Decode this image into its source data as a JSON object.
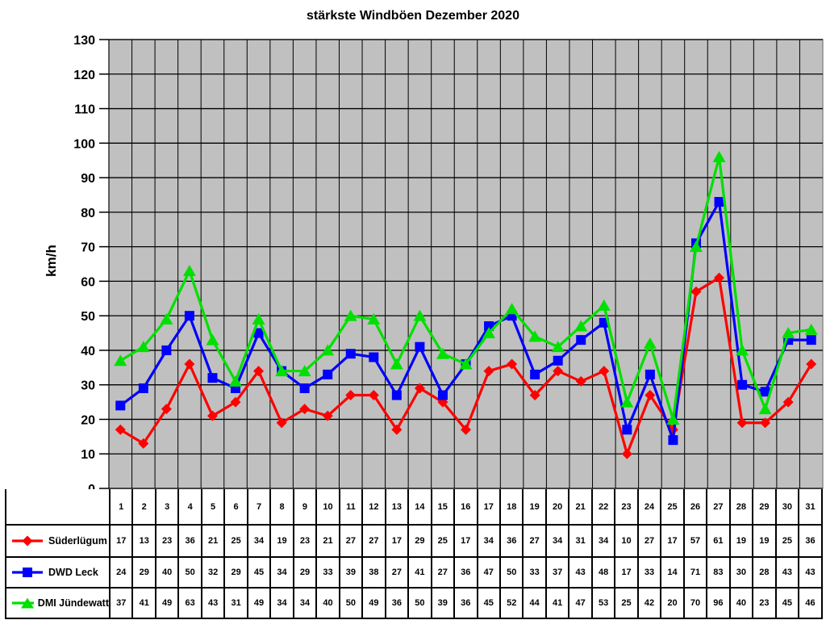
{
  "chart_data": {
    "type": "line",
    "title": "stärkste Windböen Dezember 2020",
    "xlabel": "",
    "ylabel": "km/h",
    "ylim": [
      0,
      130
    ],
    "ytick_step": 10,
    "grid": true,
    "plot_background": "#c0c0c0",
    "plot_border_color": "#8c8c8c",
    "gridline_color": "#000000",
    "legend_position": "table-left",
    "categories": [
      1,
      2,
      3,
      4,
      5,
      6,
      7,
      8,
      9,
      10,
      11,
      12,
      13,
      14,
      15,
      16,
      17,
      18,
      19,
      20,
      21,
      22,
      23,
      24,
      25,
      26,
      27,
      28,
      29,
      30,
      31
    ],
    "series": [
      {
        "name": "Süderlügum",
        "color": "#ff0000",
        "marker": "diamond",
        "values": [
          17,
          13,
          23,
          36,
          21,
          25,
          34,
          19,
          23,
          21,
          27,
          27,
          17,
          29,
          25,
          17,
          34,
          36,
          27,
          34,
          31,
          34,
          10,
          27,
          17,
          57,
          61,
          19,
          19,
          25,
          36
        ]
      },
      {
        "name": "DWD Leck",
        "color": "#0000ff",
        "marker": "square",
        "values": [
          24,
          29,
          40,
          50,
          32,
          29,
          45,
          34,
          29,
          33,
          39,
          38,
          27,
          41,
          27,
          36,
          47,
          50,
          33,
          37,
          43,
          48,
          17,
          33,
          14,
          71,
          83,
          30,
          28,
          43,
          43
        ]
      },
      {
        "name": "DMI Jündewatt",
        "color": "#00e000",
        "marker": "triangle",
        "values": [
          37,
          41,
          49,
          63,
          43,
          31,
          49,
          34,
          34,
          40,
          50,
          49,
          36,
          50,
          39,
          36,
          45,
          52,
          44,
          41,
          47,
          53,
          25,
          42,
          20,
          70,
          96,
          40,
          23,
          45,
          46
        ]
      }
    ]
  }
}
